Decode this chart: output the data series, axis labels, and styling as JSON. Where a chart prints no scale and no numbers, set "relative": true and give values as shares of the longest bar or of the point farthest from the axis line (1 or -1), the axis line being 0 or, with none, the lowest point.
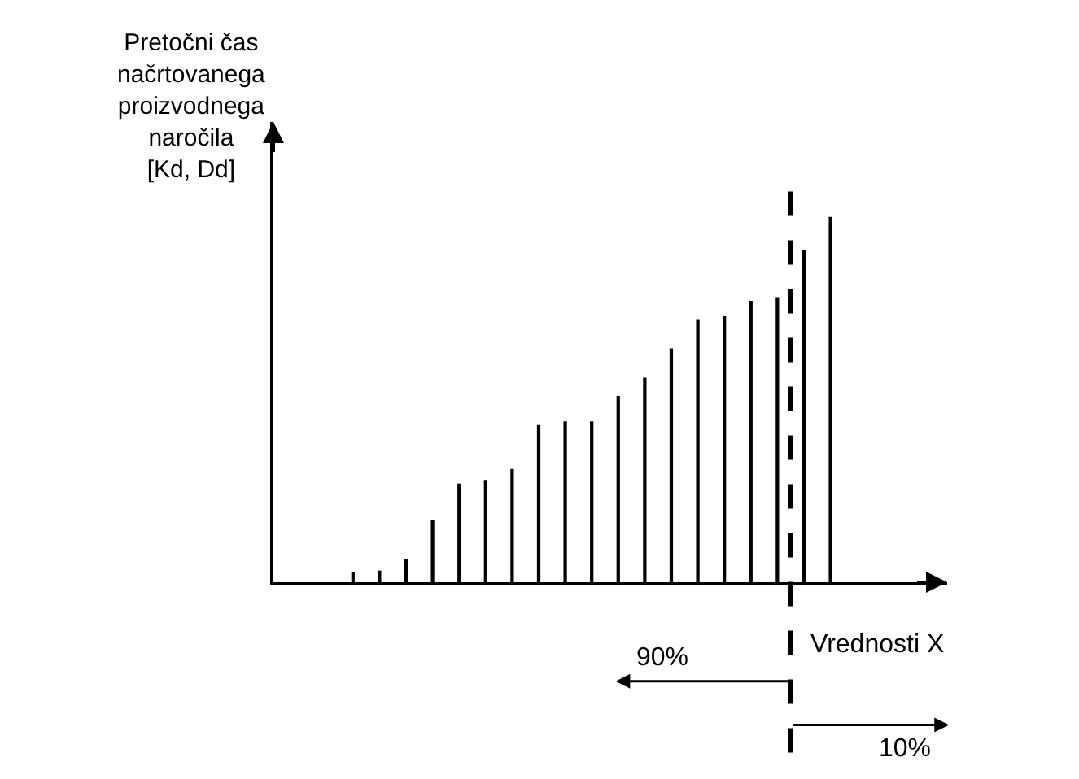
{
  "chart_data": {
    "type": "bar",
    "relative": true,
    "categories": [
      null,
      null,
      null,
      null,
      null,
      null,
      null,
      null,
      null,
      null,
      null,
      null,
      null,
      null,
      null,
      null,
      null,
      null,
      null
    ],
    "values": [
      0.027,
      0.032,
      0.063,
      0.17,
      0.27,
      0.28,
      0.31,
      0.43,
      0.44,
      0.44,
      0.51,
      0.56,
      0.64,
      0.72,
      0.73,
      0.77,
      0.78,
      0.91,
      1
    ],
    "color": "#000000",
    "xlabel": "Vrednosti X",
    "ylabel": "Pretočni čas\nnačrtovanega\nproizvodnega\nnaročila\n[Kd, Dd]",
    "annotations": [
      "90%",
      "10%"
    ]
  }
}
